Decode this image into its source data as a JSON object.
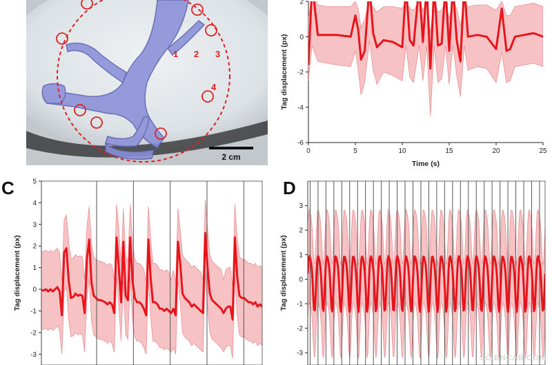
{
  "panels": {
    "C": {
      "letter": "C"
    },
    "D": {
      "letter": "D"
    }
  },
  "photo": {
    "spot_labels": [
      "1",
      "2",
      "3",
      "4"
    ],
    "scale_bar_label": "2 cm"
  },
  "watermark": "SCIENCAB.COM",
  "colors": {
    "signal": "#e8141b",
    "band": "#f6c2c4",
    "band_edge": "#eb8f93"
  },
  "chart_data": [
    {
      "id": "B",
      "type": "line",
      "title": "",
      "xlabel": "Time (s)",
      "ylabel": "Tag displacement (px)",
      "xlim": [
        0,
        25
      ],
      "ylim": [
        -6,
        2
      ],
      "xticks": [
        0,
        5,
        10,
        15,
        20,
        25
      ],
      "yticks": [
        -6,
        -4,
        -2,
        0,
        2
      ],
      "x": [
        0,
        0.4,
        1,
        2,
        3,
        4.5,
        5,
        5.3,
        5.6,
        6,
        6.5,
        6.9,
        7.3,
        8,
        9,
        10,
        10.4,
        10.8,
        11.2,
        11.8,
        12.2,
        12.6,
        13,
        13.4,
        13.8,
        14.2,
        14.6,
        15,
        15.4,
        15.8,
        16.2,
        16.6,
        17,
        18,
        19,
        20,
        20.6,
        21.1,
        21.5,
        22,
        23,
        24,
        25
      ],
      "mean": [
        -1.6,
        3.0,
        0.1,
        0.1,
        0.1,
        0.0,
        1.2,
        0.4,
        -1.3,
        -0.8,
        2.9,
        0.2,
        -0.6,
        -0.2,
        -0.3,
        -0.6,
        2.9,
        -0.2,
        -0.5,
        2.9,
        -0.3,
        2.9,
        -1.8,
        2.9,
        -0.5,
        -0.4,
        2.9,
        -0.8,
        2.9,
        -0.2,
        -1.4,
        2.9,
        0.0,
        0.1,
        0.0,
        -0.7,
        1.6,
        -0.8,
        -0.7,
        0.0,
        0.1,
        0.2,
        0.0
      ],
      "upper": [
        1.0,
        2.5,
        1.8,
        1.7,
        1.7,
        1.7,
        2.0,
        1.6,
        0.5,
        1.0,
        2.0,
        1.7,
        1.4,
        1.7,
        1.7,
        1.6,
        2.0,
        1.6,
        1.5,
        2.0,
        1.5,
        2.0,
        0.2,
        2.0,
        1.4,
        1.5,
        2.0,
        1.0,
        2.0,
        1.6,
        0.6,
        2.0,
        1.7,
        1.8,
        1.8,
        1.5,
        2.0,
        1.2,
        1.2,
        1.7,
        1.8,
        1.9,
        1.7
      ],
      "lower": [
        -2.5,
        -0.5,
        -1.4,
        -1.5,
        -1.6,
        -1.7,
        -0.8,
        -1.9,
        -3.3,
        -2.6,
        -0.2,
        -1.9,
        -2.7,
        -2.0,
        -2.2,
        -2.5,
        -0.5,
        -2.3,
        -2.6,
        -0.5,
        -2.5,
        -0.5,
        -4.5,
        -0.5,
        -2.6,
        -2.4,
        -0.5,
        -2.7,
        -0.5,
        -2.2,
        -3.4,
        -0.5,
        -1.9,
        -1.7,
        -1.8,
        -2.6,
        -0.9,
        -2.6,
        -2.5,
        -1.7,
        -1.6,
        -1.5,
        -1.7
      ]
    },
    {
      "id": "C",
      "type": "line",
      "title": "",
      "xlabel": "",
      "ylabel": "Tag displacement (px)",
      "ylim": [
        -3.5,
        5
      ],
      "yticks": [
        -3,
        -2,
        -1,
        0,
        1,
        2,
        3,
        4,
        5
      ],
      "event_count": 6,
      "mean": [
        -0.05,
        -0.05,
        0.0,
        -0.1,
        0.0,
        -0.1,
        0.0,
        0.1,
        -0.1,
        -1.2,
        1.7,
        1.9,
        0.4,
        -0.4,
        -0.35,
        -0.2,
        -0.3,
        -0.25,
        -0.3,
        -1.1,
        1.4,
        2.3,
        0.3,
        -0.3,
        -0.4,
        -0.5,
        -0.5,
        -0.55,
        -0.6,
        -0.7,
        -0.6,
        -0.7,
        -1.1,
        2.4,
        1.0,
        -0.6,
        2.2,
        -0.3,
        -0.5,
        2.4,
        0.4,
        -0.4,
        -0.6,
        -0.6,
        -0.7,
        -0.9,
        -1.2,
        2.3,
        0.5,
        -0.6,
        -0.6,
        -0.7,
        -0.9,
        -0.9,
        -1.0,
        -0.9,
        -1.0,
        -1.1,
        -0.9,
        -1.2,
        2.2,
        1.2,
        -0.2,
        -0.4,
        -0.5,
        -0.6,
        -0.8,
        -0.7,
        -0.8,
        -0.9,
        -1.0,
        -1.1,
        2.6,
        1.0,
        -0.2,
        -0.5,
        -0.6,
        -0.7,
        -0.8,
        -0.9,
        -1.1,
        -0.9,
        -0.8,
        -0.8,
        -1.4,
        2.4,
        0.6,
        -0.3,
        -0.4,
        -0.4,
        -0.5,
        -0.6,
        -0.6,
        -0.7,
        -0.6,
        -0.8,
        -0.7,
        -0.8
      ],
      "band_halfwidth": [
        1.8,
        1.8,
        1.8,
        1.8,
        1.8,
        1.8,
        1.8,
        1.8,
        1.8,
        1.8,
        1.8,
        1.8,
        1.8,
        1.8,
        1.8,
        1.8,
        1.8,
        1.8,
        1.8,
        1.8,
        1.8,
        1.8,
        1.8,
        1.8,
        1.8,
        1.8,
        1.8,
        1.8,
        1.8,
        1.8,
        1.8,
        1.8,
        1.8,
        1.8,
        1.8,
        1.8,
        1.8,
        1.8,
        1.8,
        1.8,
        1.8,
        1.8,
        1.8,
        1.8,
        1.8,
        1.8,
        1.8,
        1.8,
        1.8,
        1.8,
        1.8,
        1.8,
        1.8,
        1.8,
        1.8,
        1.8,
        1.8,
        1.8,
        1.8,
        1.8,
        1.8,
        1.8,
        1.8,
        1.8,
        1.8,
        1.8,
        1.8,
        1.8,
        1.8,
        1.8,
        1.8,
        1.8,
        1.8,
        1.8,
        1.8,
        1.8,
        1.8,
        1.8,
        1.8,
        1.8,
        1.8,
        1.8,
        1.8,
        1.8,
        1.8,
        1.8,
        1.8,
        1.8,
        1.8,
        1.8,
        1.8,
        1.8,
        1.8,
        1.8,
        1.8,
        1.8,
        1.8,
        1.8
      ]
    },
    {
      "id": "D",
      "type": "line",
      "title": "",
      "xlabel": "",
      "ylabel": "Tag displacement (px)",
      "ylim": [
        -3.5,
        4
      ],
      "yticks": [
        -3,
        -2,
        -1,
        0,
        1,
        2,
        3
      ],
      "event_count": 30,
      "cycles": 27,
      "amplitude": 1.1,
      "band_halfwidth": 1.9
    }
  ]
}
